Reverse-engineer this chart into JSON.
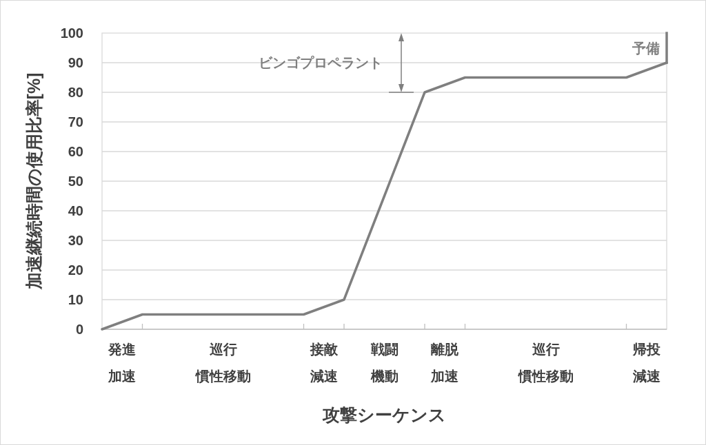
{
  "chart_data": {
    "type": "line",
    "xlabel": "攻撃シーケンス",
    "ylabel": "加速継続時間の使用比率[%]",
    "categories": [
      null,
      "発進加速",
      null,
      null,
      null,
      null,
      "巡行慣性移動",
      null,
      null,
      null,
      null,
      "接敵減速",
      null,
      null,
      "戦闘機動",
      null,
      null,
      "離脱加速",
      null,
      null,
      null,
      null,
      "巡行慣性移動",
      null,
      null,
      null,
      null,
      "帰投減速",
      null
    ],
    "series": [
      {
        "color": "#7f7f7f",
        "values": [
          0,
          2.5,
          5,
          5,
          5,
          5,
          5,
          5,
          5,
          5,
          5,
          7.5,
          10,
          27.5,
          45,
          62.5,
          80,
          82.5,
          85,
          85,
          85,
          85,
          85,
          85,
          85,
          85,
          85,
          87.5,
          90
        ]
      }
    ],
    "ylim": [
      0,
      100
    ],
    "yticks": [
      0,
      10,
      20,
      30,
      40,
      50,
      60,
      70,
      80,
      90,
      100
    ],
    "grid": "y",
    "marker": "none",
    "line_style": "solid",
    "annotations": [
      "ビンゴプロペラント",
      "予備"
    ]
  }
}
